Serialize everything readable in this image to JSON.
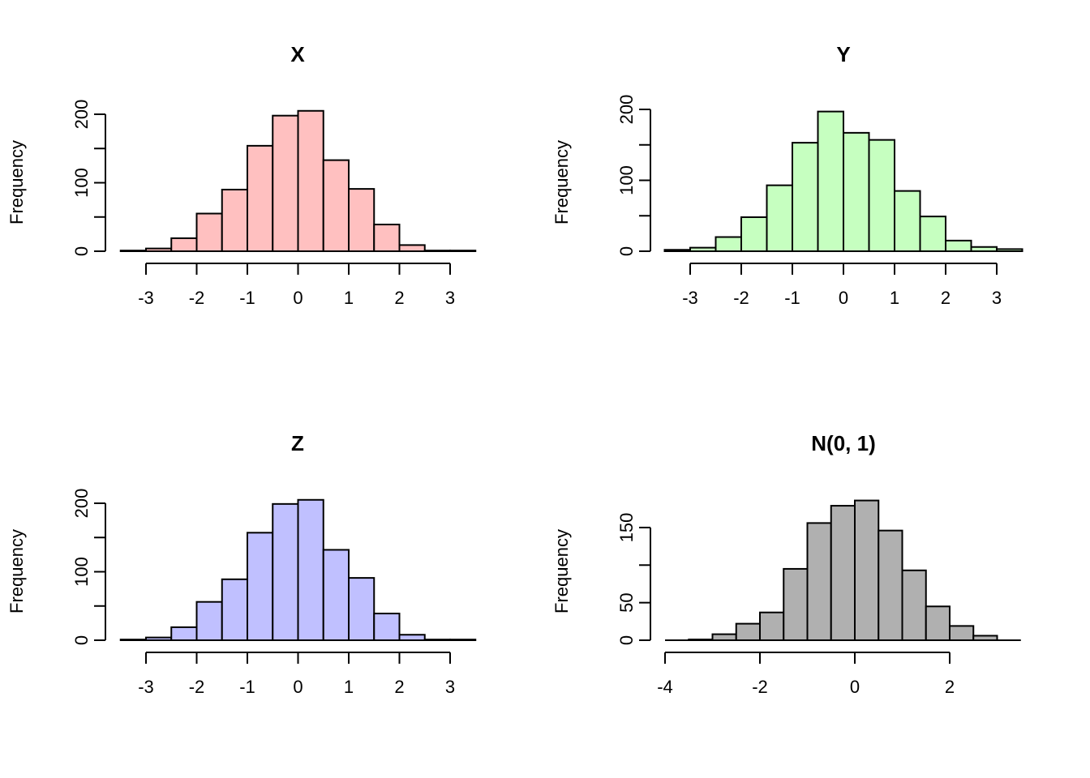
{
  "chart_data": [
    {
      "type": "bar",
      "title": "X",
      "ylabel": "Frequency",
      "xlabel": "",
      "fill_color": "#FFC0C0",
      "bin_width": 0.5,
      "bin_start": -3.5,
      "values": [
        1,
        4,
        19,
        55,
        90,
        154,
        198,
        205,
        133,
        91,
        39,
        9,
        1,
        1
      ],
      "xticks": [
        -3,
        -2,
        -1,
        0,
        1,
        2,
        3
      ],
      "xtick_labels": [
        "-3",
        "-2",
        "-1",
        "0",
        "1",
        "2",
        "3"
      ],
      "yticks": [
        0,
        50,
        100,
        150,
        200
      ],
      "ytick_labels": [
        "0",
        "100",
        "200"
      ],
      "ylabeled_ticks": [
        0,
        100,
        200
      ],
      "xlim": [
        -3.5,
        3.5
      ],
      "ylim": [
        0,
        205
      ],
      "grid": false
    },
    {
      "type": "bar",
      "title": "Y",
      "ylabel": "Frequency",
      "xlabel": "",
      "fill_color": "#C6FFC0",
      "bin_width": 0.5,
      "bin_start": -3.5,
      "values": [
        2,
        5,
        20,
        48,
        93,
        153,
        197,
        167,
        157,
        85,
        49,
        15,
        6,
        3
      ],
      "xticks": [
        -3,
        -2,
        -1,
        0,
        1,
        2,
        3
      ],
      "xtick_labels": [
        "-3",
        "-2",
        "-1",
        "0",
        "1",
        "2",
        "3"
      ],
      "yticks": [
        0,
        50,
        100,
        150,
        200
      ],
      "ytick_labels": [
        "0",
        "100",
        "200"
      ],
      "ylabeled_ticks": [
        0,
        100,
        200
      ],
      "xlim": [
        -3.5,
        3.5
      ],
      "ylim": [
        0,
        200
      ],
      "grid": false
    },
    {
      "type": "bar",
      "title": "Z",
      "ylabel": "Frequency",
      "xlabel": "",
      "fill_color": "#C0C0FF",
      "bin_width": 0.5,
      "bin_start": -3.5,
      "values": [
        1,
        4,
        19,
        56,
        89,
        157,
        199,
        205,
        132,
        91,
        39,
        8,
        1,
        1
      ],
      "xticks": [
        -3,
        -2,
        -1,
        0,
        1,
        2,
        3
      ],
      "xtick_labels": [
        "-3",
        "-2",
        "-1",
        "0",
        "1",
        "2",
        "3"
      ],
      "yticks": [
        0,
        50,
        100,
        150,
        200
      ],
      "ytick_labels": [
        "0",
        "100",
        "200"
      ],
      "ylabeled_ticks": [
        0,
        100,
        200
      ],
      "xlim": [
        -3.5,
        3.5
      ],
      "ylim": [
        0,
        205
      ],
      "grid": false
    },
    {
      "type": "bar",
      "title": "N(0, 1)",
      "ylabel": "Frequency",
      "xlabel": "",
      "fill_color": "#B0B0B0",
      "bin_width": 0.5,
      "bin_start": -4,
      "values": [
        0,
        1,
        8,
        22,
        37,
        95,
        156,
        179,
        186,
        146,
        93,
        45,
        19,
        6,
        0
      ],
      "xticks": [
        -4,
        -2,
        0,
        2
      ],
      "xtick_labels": [
        "-4",
        "-2",
        "0",
        "2"
      ],
      "yticks": [
        0,
        50,
        100,
        150
      ],
      "ytick_labels": [
        "0",
        "50",
        "150"
      ],
      "ylabeled_ticks": [
        0,
        50,
        150
      ],
      "xlim": [
        -4,
        3.5
      ],
      "ylim": [
        0,
        186
      ],
      "grid": false
    }
  ]
}
